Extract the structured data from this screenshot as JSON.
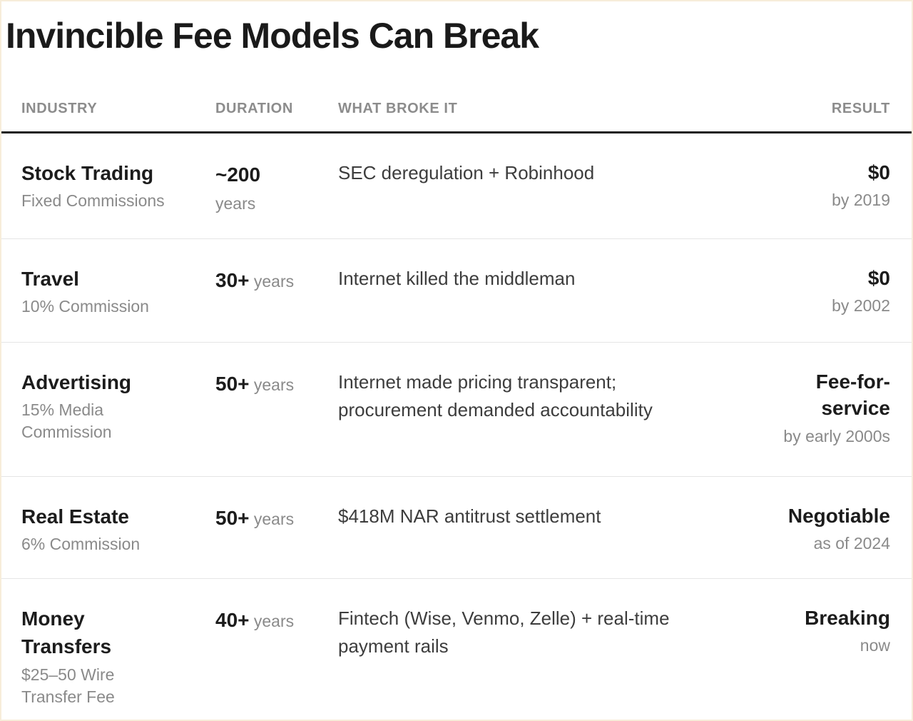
{
  "title": "Invincible Fee Models Can Break",
  "colors": {
    "card_border": "#f7edda",
    "header_text": "#8c8c8c",
    "header_rule": "#1a1a1a",
    "primary_text": "#1c1c1c",
    "secondary_text": "#8a8a8a",
    "body_text": "#3d3d3d",
    "row_divider": "#e5e5e5",
    "background": "#ffffff"
  },
  "table": {
    "columns": [
      {
        "id": "industry",
        "label": "INDUSTRY"
      },
      {
        "id": "duration",
        "label": "DURATION"
      },
      {
        "id": "what_broke_it",
        "label": "WHAT BROKE IT"
      },
      {
        "id": "result",
        "label": "RESULT"
      }
    ],
    "rows": [
      {
        "industry": "Stock Trading",
        "industry_detail": "Fixed Commissions",
        "duration_value": "~200",
        "duration_unit": "years",
        "what_broke_it": "SEC deregulation + Robinhood",
        "result": "$0",
        "result_detail": "by 2019"
      },
      {
        "industry": "Travel",
        "industry_detail": "10% Commission",
        "duration_value": "30+",
        "duration_unit": "years",
        "what_broke_it": "Internet killed the middleman",
        "result": "$0",
        "result_detail": "by 2002"
      },
      {
        "industry": "Advertising",
        "industry_detail": "15% Media Commission",
        "duration_value": "50+",
        "duration_unit": "years",
        "what_broke_it": "Internet made pricing transparent; procurement demanded accountability",
        "result": "Fee-for-service",
        "result_detail": "by early 2000s"
      },
      {
        "industry": "Real Estate",
        "industry_detail": "6% Commission",
        "duration_value": "50+",
        "duration_unit": "years",
        "what_broke_it": "$418M NAR antitrust settlement",
        "result": "Negotiable",
        "result_detail": "as of 2024"
      },
      {
        "industry": "Money Transfers",
        "industry_detail": "$25–50 Wire Transfer Fee",
        "duration_value": "40+",
        "duration_unit": "years",
        "what_broke_it": "Fintech (Wise, Venmo, Zelle) + real-time payment rails",
        "result": "Breaking",
        "result_detail": "now"
      }
    ]
  }
}
